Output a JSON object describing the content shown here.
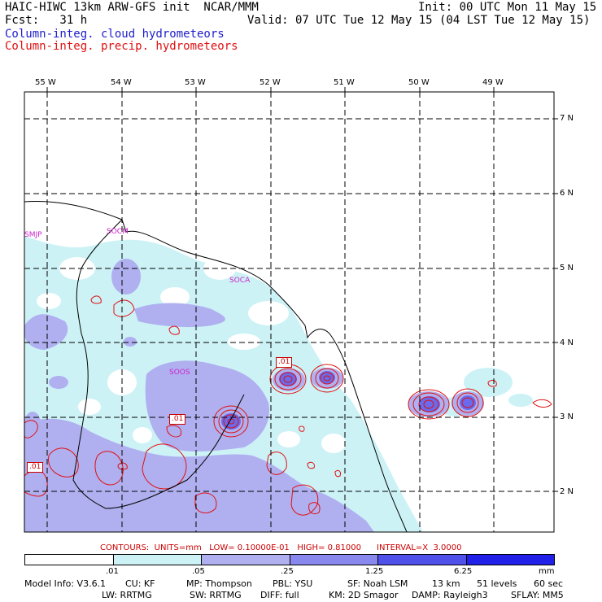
{
  "header": {
    "model_line": "HAIC-HIWC 13km ARW-GFS init  NCAR/MMM",
    "init_line": "Init: 00 UTC Mon 11 May 15",
    "fcst_line": "Fcst:   31 h",
    "valid_line": "Valid: 07 UTC Tue 12 May 15 (04 LST Tue 12 May 15)",
    "field1": "Column-integ. cloud hydrometeors",
    "field2": "Column-integ. precip. hydrometeors"
  },
  "map": {
    "lon_labels": [
      "55 W",
      "54 W",
      "53 W",
      "52 W",
      "51 W",
      "50 W",
      "49 W"
    ],
    "lat_labels": [
      "7 N",
      "6 N",
      "5 N",
      "4 N",
      "3 N",
      "2 N"
    ],
    "stations": [
      "SMJP",
      "SOCM",
      "SOCA",
      "SOOS"
    ],
    "contour_labels": [
      ".01",
      ".01",
      ".01"
    ]
  },
  "legend": {
    "contours_text": "CONTOURS:  UNITS=mm   LOW= 0.10000E-01   HIGH= 0.81000      INTERVAL=X  3.0000",
    "ticks": [
      ".01",
      ".05",
      ".25",
      "1.25",
      "6.25"
    ],
    "units": "mm",
    "colors": [
      "#ffffff",
      "#ccf2f6",
      "#b0b0f0",
      "#8888ee",
      "#5050ea",
      "#2020e8"
    ]
  },
  "footer": {
    "line1": [
      "Model Info: V3.6.1",
      "CU: KF",
      "MP: Thompson",
      "PBL: YSU",
      "SF: Noah LSM",
      "13 km",
      "51 levels",
      "60 sec"
    ],
    "line2": [
      "LW: RRTMG",
      "SW: RRTMG",
      "DIFF: full",
      "KM: 2D Smagor",
      "DAMP: Rayleigh3",
      "SFLAY: MM5"
    ]
  }
}
